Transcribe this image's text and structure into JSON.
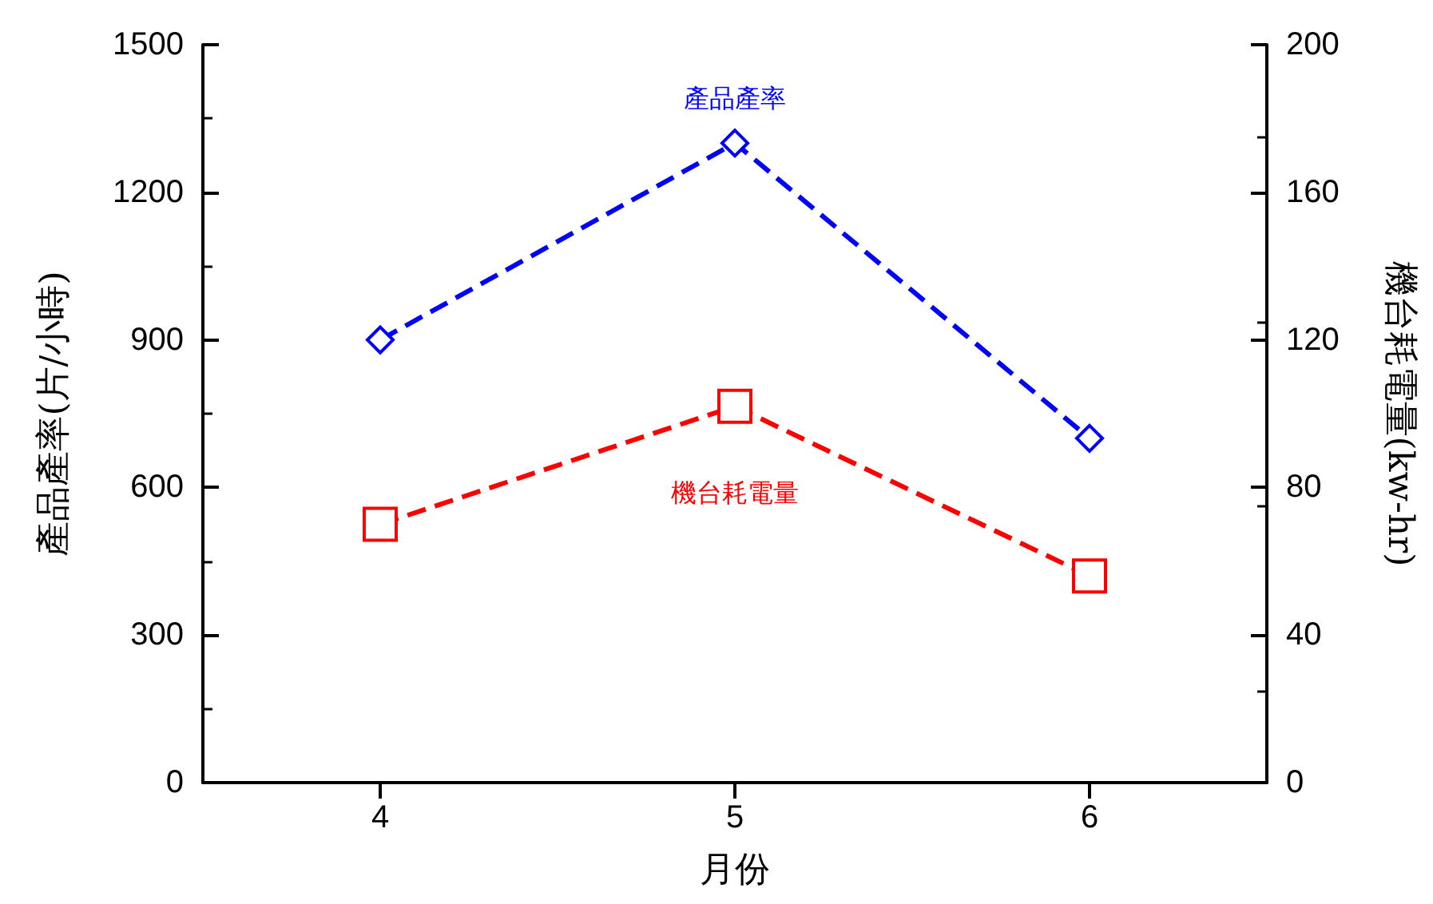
{
  "chart_data": {
    "type": "line",
    "xlabel": "月份",
    "ylabel": "產品產率(片/小時)",
    "y2label": "機台耗電量(kw-hr)",
    "x": [
      4,
      5,
      6
    ],
    "xlim": [
      3.5,
      6.5
    ],
    "xticks": [
      4,
      5,
      6
    ],
    "ylim": [
      0,
      1500
    ],
    "yticks": [
      0,
      300,
      600,
      900,
      1200,
      1500
    ],
    "y2lim": [
      0,
      200
    ],
    "y2ticks": [
      0,
      40,
      80,
      120,
      160,
      200
    ],
    "series": [
      {
        "name": "產品產率",
        "color": "#0000ff",
        "values": [
          900,
          1300,
          700
        ],
        "marker": "diamond"
      },
      {
        "name": "機台耗電量",
        "color": "#ff0000",
        "values": [
          70,
          102,
          56
        ],
        "marker": "square",
        "axis": "y2"
      }
    ],
    "line_style": "dashed",
    "grid": false,
    "legend": false
  }
}
